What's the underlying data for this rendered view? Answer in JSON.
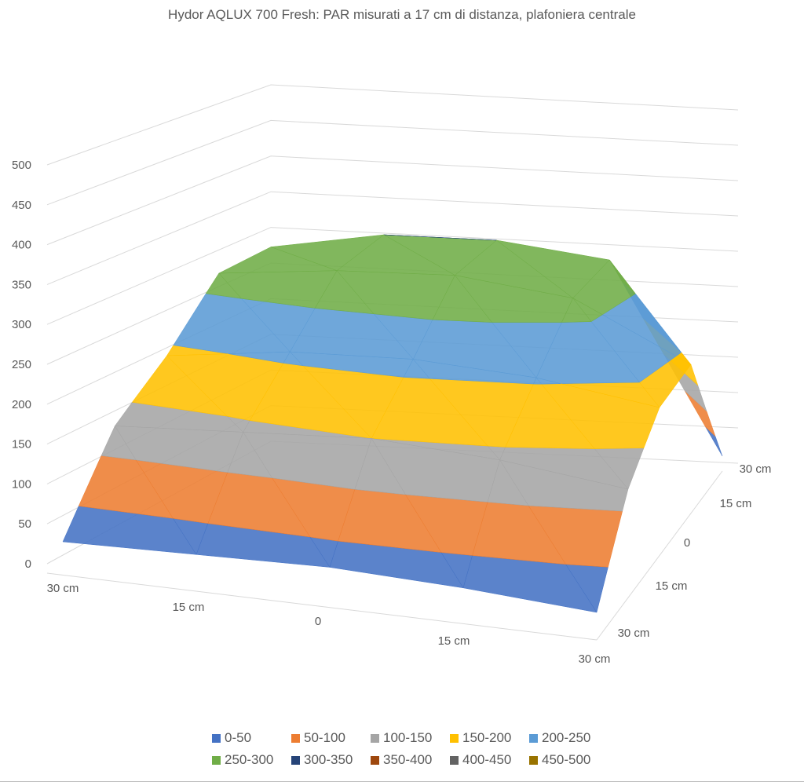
{
  "chart_data": {
    "type": "surface-3d",
    "title": "Hydor AQLUX 700 Fresh: PAR misurati a 17 cm di distanza, plafoniera centrale",
    "x_labels": [
      "30 cm",
      "15 cm",
      "0",
      "15 cm",
      "30 cm"
    ],
    "depth_labels": [
      "30 cm",
      "15 cm",
      "0",
      "15 cm",
      "30 cm"
    ],
    "z_ticks": [
      0,
      50,
      100,
      150,
      200,
      250,
      300,
      350,
      400,
      450,
      500
    ],
    "zlim": [
      0,
      500
    ],
    "grid": true,
    "legend_position": "bottom",
    "values": [
      [
        15,
        20,
        25,
        20,
        10
      ],
      [
        130,
        140,
        150,
        140,
        120
      ],
      [
        190,
        210,
        215,
        205,
        180
      ],
      [
        270,
        285,
        290,
        270,
        190
      ],
      [
        275,
        300,
        300,
        280,
        10
      ]
    ],
    "bands": [
      {
        "name": "0-50",
        "lo": 0,
        "hi": 50,
        "color": "#4472C4"
      },
      {
        "name": "50-100",
        "lo": 50,
        "hi": 100,
        "color": "#ED7D31"
      },
      {
        "name": "100-150",
        "lo": 100,
        "hi": 150,
        "color": "#A5A5A5"
      },
      {
        "name": "150-200",
        "lo": 150,
        "hi": 200,
        "color": "#FFC000"
      },
      {
        "name": "200-250",
        "lo": 200,
        "hi": 250,
        "color": "#5B9BD5"
      },
      {
        "name": "250-300",
        "lo": 250,
        "hi": 300,
        "color": "#70AD47"
      },
      {
        "name": "300-350",
        "lo": 300,
        "hi": 350,
        "color": "#264478"
      },
      {
        "name": "350-400",
        "lo": 350,
        "hi": 400,
        "color": "#9E480E"
      },
      {
        "name": "400-450",
        "lo": 400,
        "hi": 450,
        "color": "#636363"
      },
      {
        "name": "450-500",
        "lo": 450,
        "hi": 500,
        "color": "#997300"
      }
    ]
  }
}
